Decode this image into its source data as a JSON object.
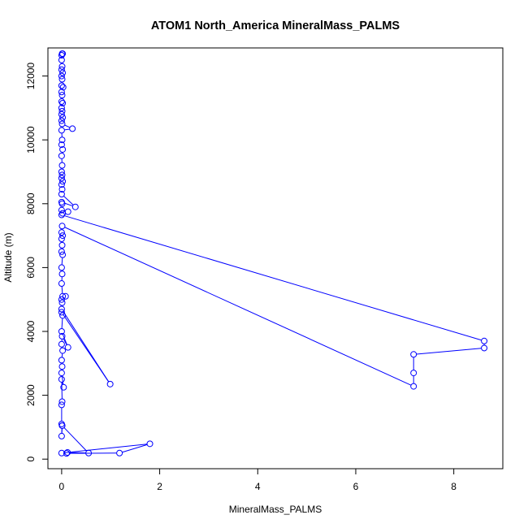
{
  "chart_data": {
    "type": "line",
    "title": "ATOM1 North_America MineralMass_PALMS",
    "xlabel": "MineralMass_PALMS",
    "ylabel": "Altitude (m)",
    "xlim": [
      -0.28,
      9.0
    ],
    "ylim": [
      -300,
      12880
    ],
    "xticks": [
      0,
      2,
      4,
      6,
      8
    ],
    "yticks": [
      0,
      2000,
      4000,
      6000,
      8000,
      10000,
      12000
    ],
    "grid": false,
    "marker": "open-circle",
    "colors": {
      "series": "#0000ff",
      "axis": "#000000",
      "background": "#ffffff"
    },
    "series": [
      {
        "points": [
          [
            0.02,
            12700
          ],
          [
            0.01,
            12700
          ],
          [
            0.0,
            12650
          ],
          [
            0.0,
            12500
          ],
          [
            0.01,
            12300
          ],
          [
            0.0,
            12200
          ],
          [
            0.02,
            12100
          ],
          [
            0.0,
            12000
          ],
          [
            0.01,
            11900
          ],
          [
            0.0,
            11700
          ],
          [
            0.03,
            11650
          ],
          [
            0.0,
            11500
          ],
          [
            0.01,
            11400
          ],
          [
            0.0,
            11200
          ],
          [
            0.02,
            11150
          ],
          [
            0.0,
            11000
          ],
          [
            0.01,
            10900
          ],
          [
            0.0,
            10800
          ],
          [
            0.02,
            10700
          ],
          [
            0.0,
            10600
          ],
          [
            0.01,
            10500
          ],
          [
            0.22,
            10350
          ],
          [
            0.0,
            10300
          ],
          [
            0.01,
            10000
          ],
          [
            0.0,
            9850
          ],
          [
            0.02,
            9700
          ],
          [
            0.0,
            9500
          ],
          [
            0.01,
            9200
          ],
          [
            0.0,
            9000
          ],
          [
            0.01,
            8900
          ],
          [
            0.0,
            8800
          ],
          [
            0.02,
            8700
          ],
          [
            0.0,
            8600
          ],
          [
            0.01,
            8450
          ],
          [
            0.0,
            8300
          ],
          [
            0.28,
            7900
          ],
          [
            0.0,
            8050
          ],
          [
            0.01,
            8000
          ],
          [
            0.0,
            7800
          ],
          [
            0.13,
            7750
          ],
          [
            0.02,
            7700
          ],
          [
            0.0,
            7650
          ],
          [
            8.62,
            3700
          ],
          [
            8.62,
            3480
          ],
          [
            7.18,
            3280
          ],
          [
            7.18,
            2700
          ],
          [
            7.18,
            2280
          ],
          [
            0.01,
            7300
          ],
          [
            0.0,
            7100
          ],
          [
            0.02,
            7000
          ],
          [
            0.0,
            6900
          ],
          [
            0.01,
            6700
          ],
          [
            0.0,
            6500
          ],
          [
            0.02,
            6400
          ],
          [
            0.0,
            6000
          ],
          [
            0.01,
            5800
          ],
          [
            0.0,
            5500
          ],
          [
            0.02,
            5100
          ],
          [
            0.08,
            5100
          ],
          [
            0.0,
            5000
          ],
          [
            0.01,
            4900
          ],
          [
            0.0,
            4700
          ],
          [
            0.99,
            2350
          ],
          [
            0.0,
            4600
          ],
          [
            0.02,
            4500
          ],
          [
            0.0,
            4000
          ],
          [
            0.13,
            3500
          ],
          [
            0.01,
            3850
          ],
          [
            0.0,
            3600
          ],
          [
            0.02,
            3400
          ],
          [
            0.0,
            3100
          ],
          [
            0.01,
            2900
          ],
          [
            0.0,
            2700
          ],
          [
            0.04,
            2250
          ],
          [
            0.0,
            2500
          ],
          [
            0.01,
            1800
          ],
          [
            0.0,
            1700
          ],
          [
            0.0,
            1100
          ],
          [
            0.01,
            1050
          ],
          [
            0.0,
            720
          ],
          [
            0.01,
            1050
          ],
          [
            0.55,
            190
          ],
          [
            0.12,
            210
          ],
          [
            0.1,
            180
          ],
          [
            1.18,
            190
          ],
          [
            1.8,
            480
          ],
          [
            0.0,
            190
          ]
        ]
      }
    ]
  }
}
